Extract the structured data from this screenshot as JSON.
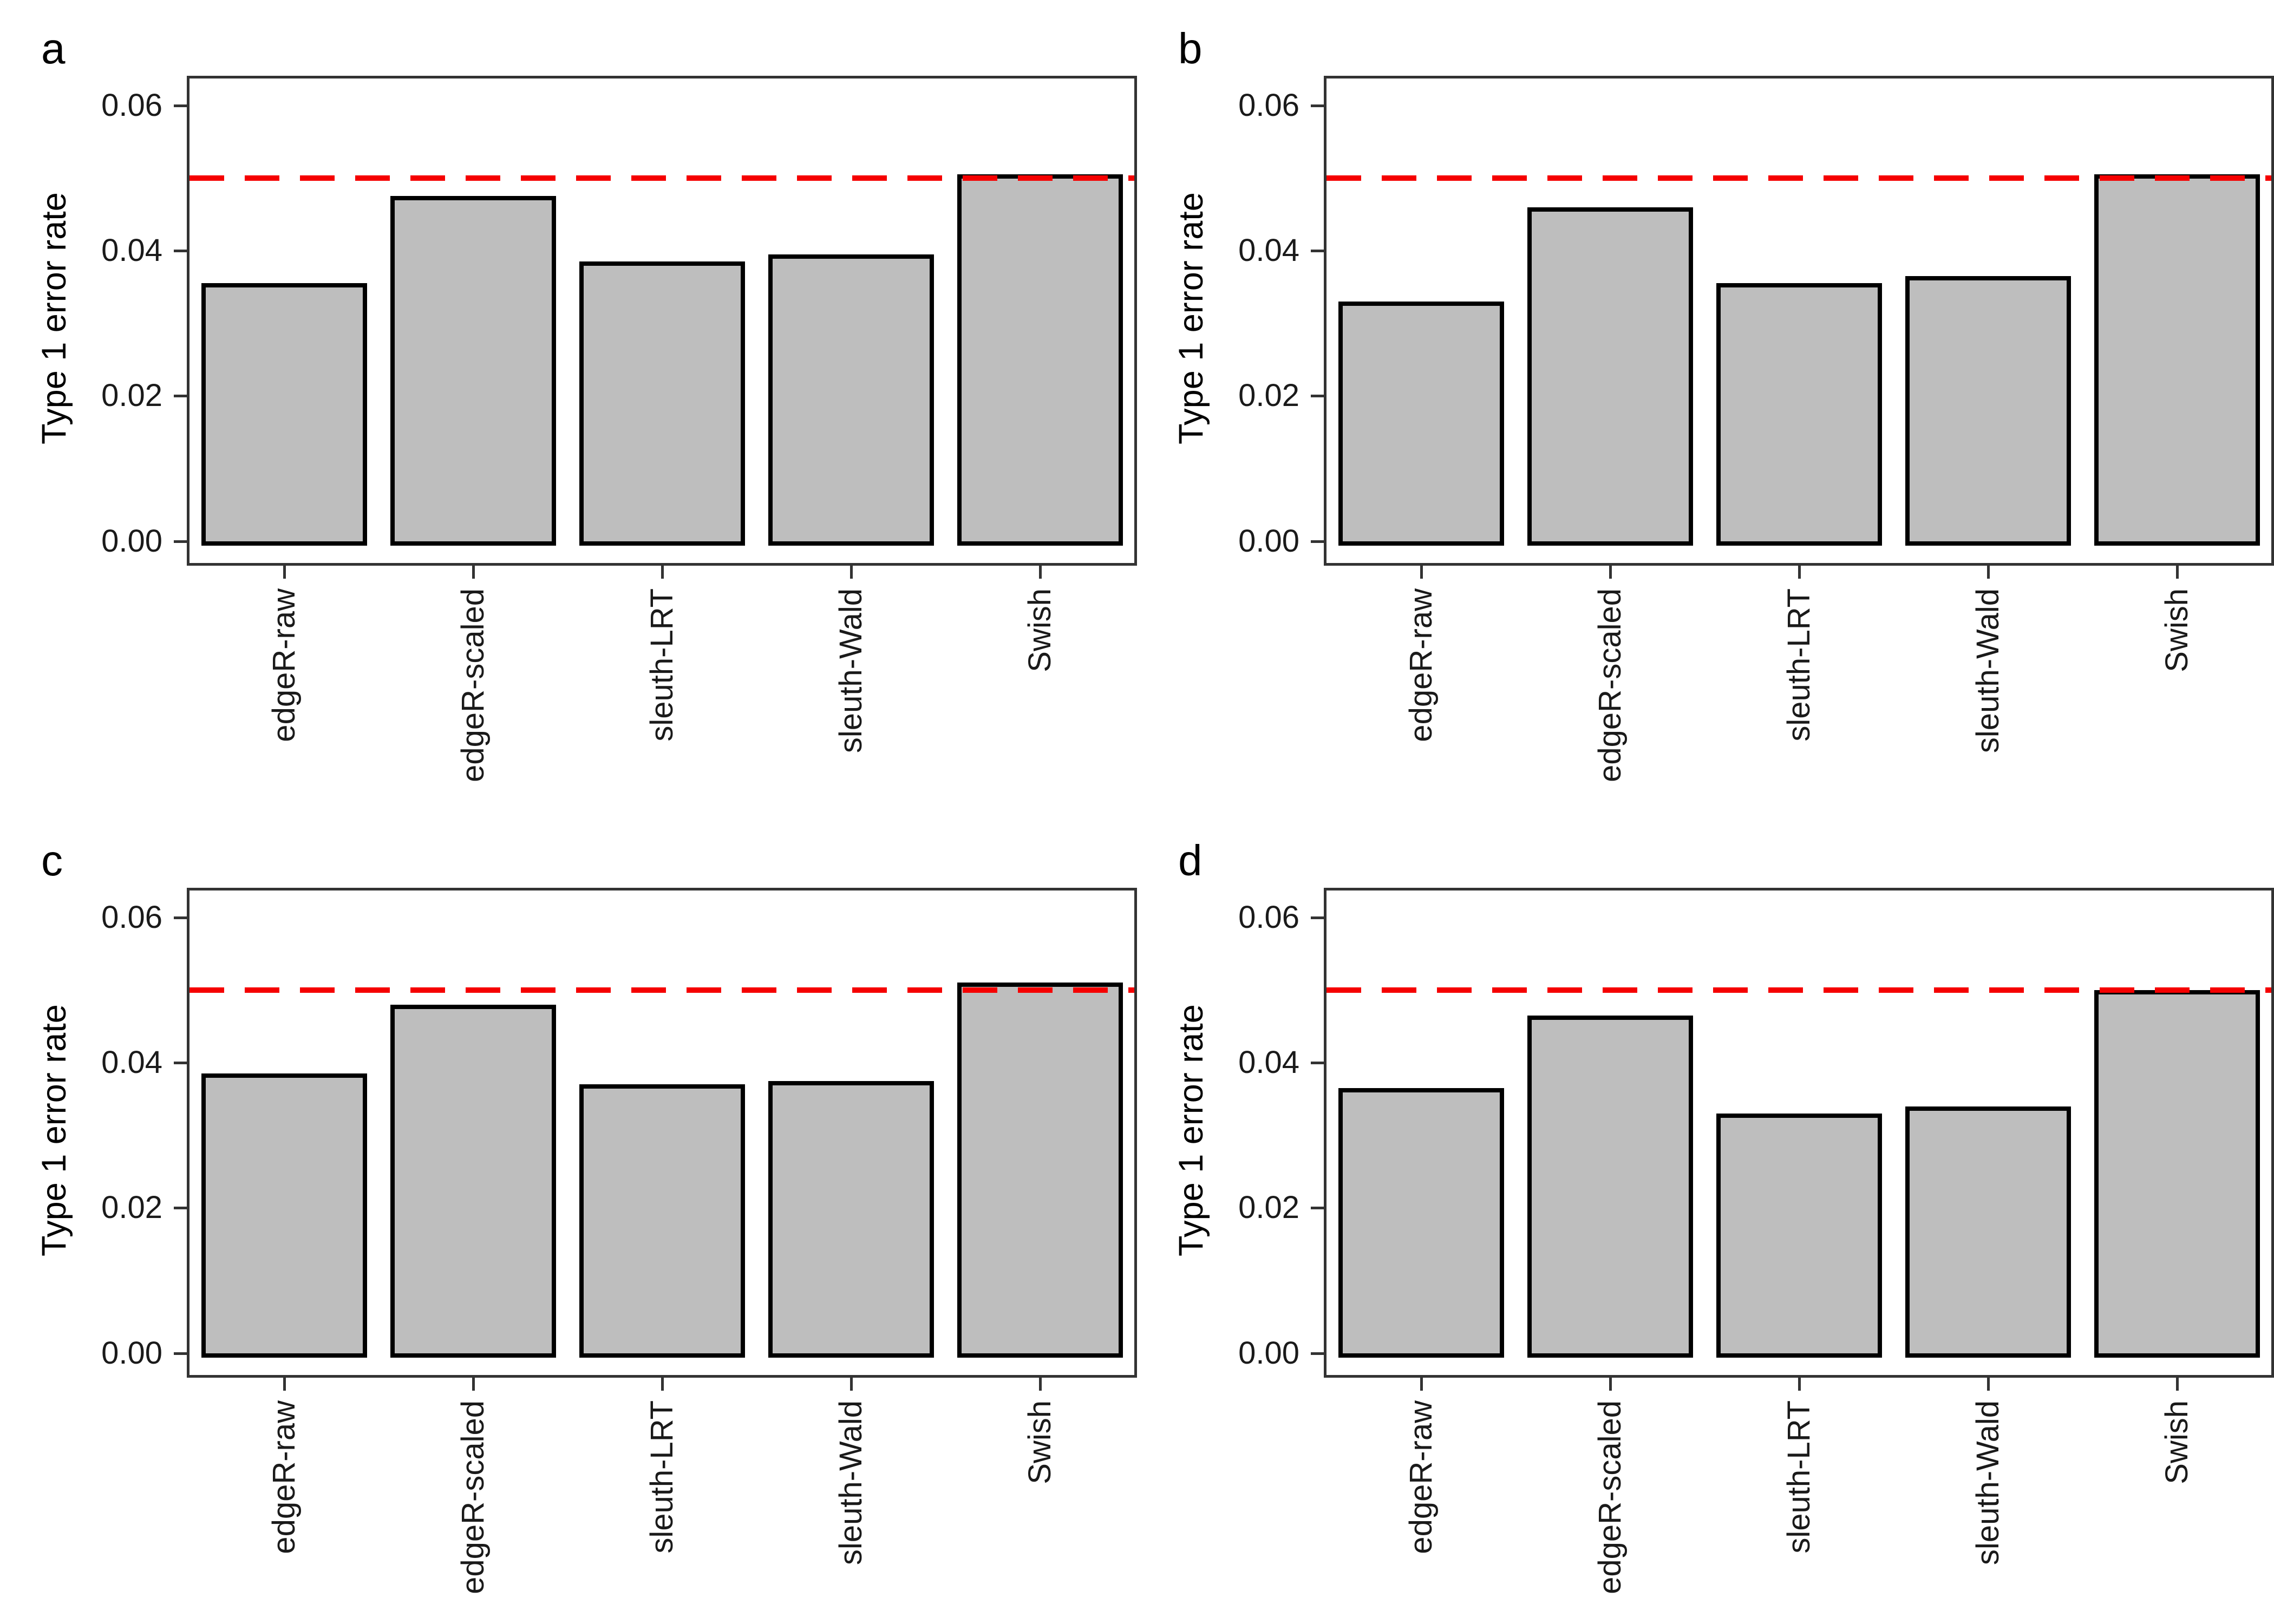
{
  "figure": {
    "ylabel": "Type 1 error rate",
    "categories": [
      "edgeR-raw",
      "edgeR-scaled",
      "sleuth-LRT",
      "sleuth-Wald",
      "Swish"
    ],
    "y_tick_labels": [
      "0.00",
      "0.02",
      "0.04",
      "0.06"
    ],
    "y_tick_values": [
      0,
      0.02,
      0.04,
      0.06
    ],
    "reference_line_value": 0.05,
    "colors": {
      "bar_fill": "#bebebe",
      "bar_stroke": "#000000",
      "reference_line": "#f50000",
      "panel_border": "#333333",
      "tick": "#333333",
      "text": "#1a1a1a"
    }
  },
  "chart_data": [
    {
      "type": "bar",
      "panel_label": "a",
      "categories": [
        "edgeR-raw",
        "edgeR-scaled",
        "sleuth-LRT",
        "sleuth-Wald",
        "Swish"
      ],
      "values": [
        0.0355,
        0.0475,
        0.0385,
        0.0395,
        0.0505
      ],
      "ylabel": "Type 1 error rate",
      "xlabel": "",
      "ylim": [
        0,
        0.06
      ],
      "y_ticks": [
        0,
        0.02,
        0.04,
        0.06
      ],
      "ref_line": 0.05,
      "grid": false,
      "legend": "none"
    },
    {
      "type": "bar",
      "panel_label": "b",
      "categories": [
        "edgeR-raw",
        "edgeR-scaled",
        "sleuth-LRT",
        "sleuth-Wald",
        "Swish"
      ],
      "values": [
        0.033,
        0.046,
        0.0355,
        0.0365,
        0.0505
      ],
      "ylabel": "Type 1 error rate",
      "xlabel": "",
      "ylim": [
        0,
        0.06
      ],
      "y_ticks": [
        0,
        0.02,
        0.04,
        0.06
      ],
      "ref_line": 0.05,
      "grid": false,
      "legend": "none"
    },
    {
      "type": "bar",
      "panel_label": "c",
      "categories": [
        "edgeR-raw",
        "edgeR-scaled",
        "sleuth-LRT",
        "sleuth-Wald",
        "Swish"
      ],
      "values": [
        0.0385,
        0.048,
        0.037,
        0.0375,
        0.051
      ],
      "ylabel": "Type 1 error rate",
      "xlabel": "",
      "ylim": [
        0,
        0.06
      ],
      "y_ticks": [
        0,
        0.02,
        0.04,
        0.06
      ],
      "ref_line": 0.05,
      "grid": false,
      "legend": "none"
    },
    {
      "type": "bar",
      "panel_label": "d",
      "categories": [
        "edgeR-raw",
        "edgeR-scaled",
        "sleuth-LRT",
        "sleuth-Wald",
        "Swish"
      ],
      "values": [
        0.0365,
        0.0465,
        0.033,
        0.034,
        0.05
      ],
      "ylabel": "Type 1 error rate",
      "xlabel": "",
      "ylim": [
        0,
        0.06
      ],
      "y_ticks": [
        0,
        0.02,
        0.04,
        0.06
      ],
      "ref_line": 0.05,
      "grid": false,
      "legend": "none"
    }
  ]
}
